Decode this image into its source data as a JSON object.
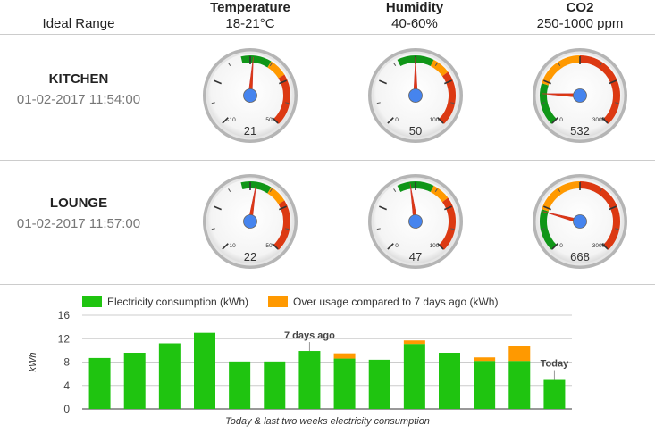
{
  "header": {
    "range_label": "Ideal Range",
    "columns": [
      {
        "title": "Temperature",
        "range": "18-21°C"
      },
      {
        "title": "Humidity",
        "range": "40-60%"
      },
      {
        "title": "CO2",
        "range": "250-1000 ppm"
      }
    ]
  },
  "rooms": [
    {
      "name": "KITCHEN",
      "timestamp": "01-02-2017 11:54:00",
      "gauges": [
        {
          "value": 21,
          "display": "21",
          "min": -10,
          "max": 50,
          "min_label": "-10",
          "max_label": "50",
          "bands": [
            {
              "from": 17,
              "to": 27,
              "color": "#109618"
            },
            {
              "from": 27,
              "to": 33,
              "color": "#ff9900"
            },
            {
              "from": 33,
              "to": 50,
              "color": "#dc3912"
            }
          ]
        },
        {
          "value": 50,
          "display": "50",
          "min": 0,
          "max": 100,
          "min_label": "0",
          "max_label": "100",
          "bands": [
            {
              "from": 40,
              "to": 60,
              "color": "#109618"
            },
            {
              "from": 60,
              "to": 70,
              "color": "#ff9900"
            },
            {
              "from": 70,
              "to": 100,
              "color": "#dc3912"
            }
          ]
        },
        {
          "value": 532,
          "display": "532",
          "min": 0,
          "max": 3000,
          "min_label": "0",
          "max_label": "3000",
          "bands": [
            {
              "from": 0,
              "to": 700,
              "color": "#109618"
            },
            {
              "from": 700,
              "to": 1500,
              "color": "#ff9900"
            },
            {
              "from": 1500,
              "to": 3000,
              "color": "#dc3912"
            }
          ]
        }
      ]
    },
    {
      "name": "LOUNGE",
      "timestamp": "01-02-2017 11:57:00",
      "gauges": [
        {
          "value": 22,
          "display": "22",
          "min": -10,
          "max": 50,
          "min_label": "-10",
          "max_label": "50",
          "bands": [
            {
              "from": 17,
              "to": 27,
              "color": "#109618"
            },
            {
              "from": 27,
              "to": 33,
              "color": "#ff9900"
            },
            {
              "from": 33,
              "to": 50,
              "color": "#dc3912"
            }
          ]
        },
        {
          "value": 47,
          "display": "47",
          "min": 0,
          "max": 100,
          "min_label": "0",
          "max_label": "100",
          "bands": [
            {
              "from": 40,
              "to": 60,
              "color": "#109618"
            },
            {
              "from": 60,
              "to": 70,
              "color": "#ff9900"
            },
            {
              "from": 70,
              "to": 100,
              "color": "#dc3912"
            }
          ]
        },
        {
          "value": 668,
          "display": "668",
          "min": 0,
          "max": 3000,
          "min_label": "0",
          "max_label": "3000",
          "bands": [
            {
              "from": 0,
              "to": 700,
              "color": "#109618"
            },
            {
              "from": 700,
              "to": 1500,
              "color": "#ff9900"
            },
            {
              "from": 1500,
              "to": 3000,
              "color": "#dc3912"
            }
          ]
        }
      ]
    }
  ],
  "chart_data": {
    "type": "bar",
    "stacked": true,
    "title": "",
    "caption": "Today & last two weeks electricity consumption",
    "xlabel": "",
    "ylabel": "kWh",
    "ylim": [
      0,
      16
    ],
    "yticks": [
      "0",
      "4",
      "8",
      "12",
      "16"
    ],
    "grid": true,
    "legend_position": "top",
    "series": [
      {
        "name": "Electricity consumption (kWh)",
        "color": "#1fc410",
        "values": [
          8.7,
          9.6,
          11.2,
          13.0,
          8.1,
          8.1,
          9.9,
          8.6,
          8.4,
          11.1,
          9.6,
          8.2,
          8.2,
          5.1
        ]
      },
      {
        "name": "Over usage compared to 7 days ago (kWh)",
        "color": "#ff9900",
        "values": [
          0,
          0,
          0,
          0,
          0,
          0,
          0,
          0.9,
          0,
          0.6,
          0,
          0.6,
          2.6,
          0
        ]
      }
    ],
    "annotations": [
      {
        "index": 6,
        "text": "7 days ago"
      },
      {
        "index": 13,
        "text": "Today"
      }
    ]
  }
}
